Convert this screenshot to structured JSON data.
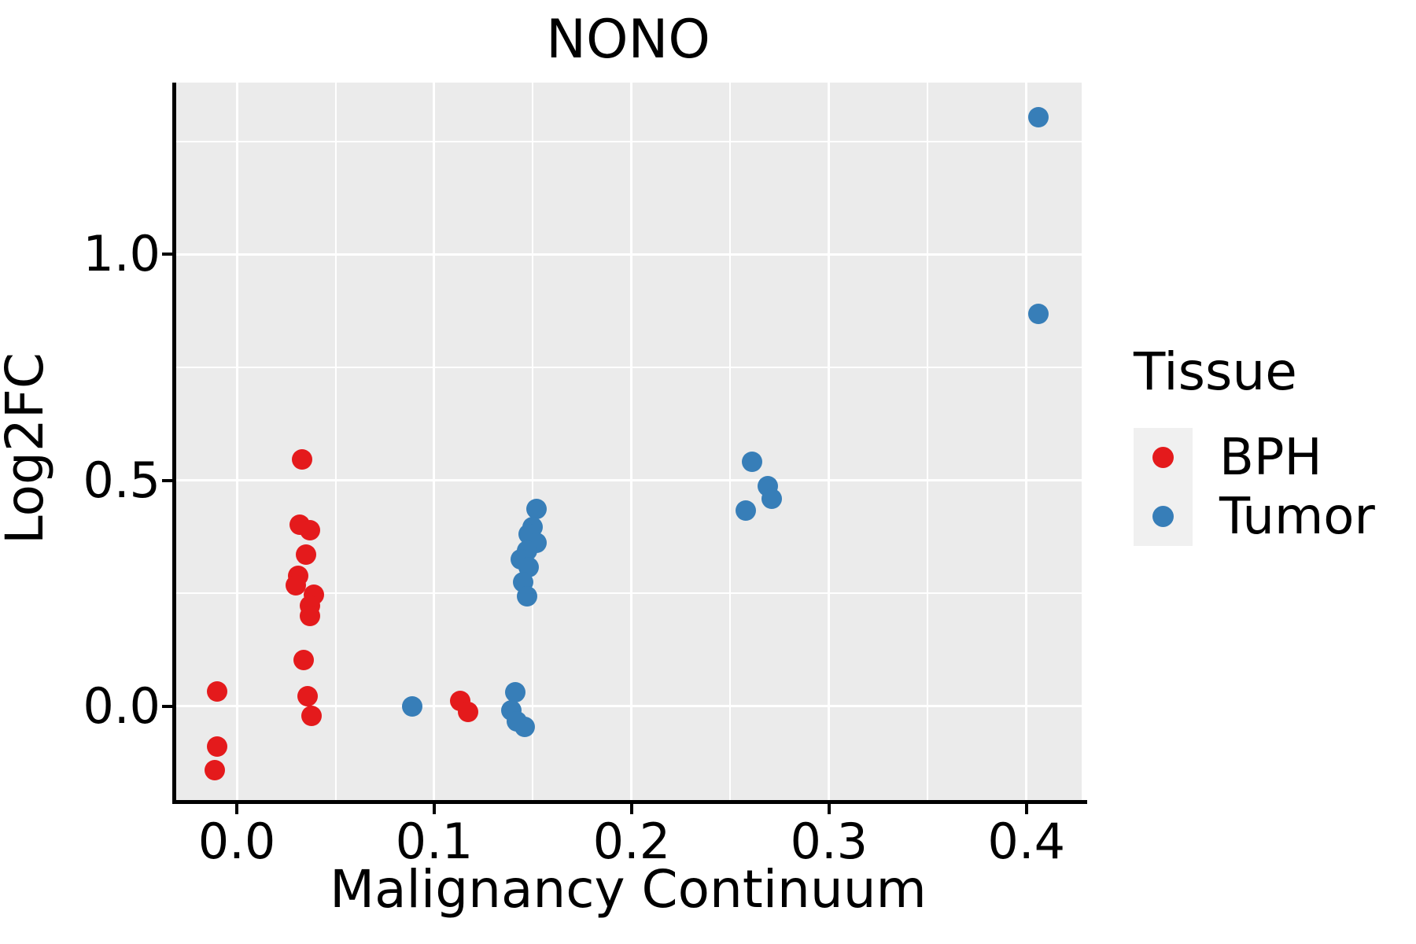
{
  "chart_data": {
    "type": "scatter",
    "title": "NONO",
    "xlabel": "Malignancy Continuum",
    "ylabel": "Log2FC",
    "xlim": [
      -0.0315,
      0.428
    ],
    "ylim": [
      -0.211,
      1.38
    ],
    "grid": "on",
    "panel_bg": "#ebebeb",
    "grid_color": "#ffffff",
    "x_major_ticks": [
      0.0,
      0.1,
      0.2,
      0.3,
      0.4
    ],
    "x_tick_labels": [
      "0.0",
      "0.1",
      "0.2",
      "0.3",
      "0.4"
    ],
    "x_minor_ticks": [
      0.05,
      0.15,
      0.25,
      0.35
    ],
    "y_major_ticks": [
      0.0,
      0.5,
      1.0
    ],
    "y_tick_labels": [
      "0.0",
      "0.5",
      "1.0"
    ],
    "y_minor_ticks": [
      0.25,
      0.75,
      1.25
    ],
    "legend": {
      "title": "Tissue",
      "position": "right",
      "entries": [
        {
          "label": "BPH",
          "color": "#e41a1c"
        },
        {
          "label": "Tumor",
          "color": "#377eb8"
        }
      ]
    },
    "series": [
      {
        "name": "BPH",
        "color": "#e41a1c",
        "points": [
          [
            -0.01,
            0.033
          ],
          [
            -0.01,
            -0.089
          ],
          [
            -0.011,
            -0.141
          ],
          [
            0.033,
            0.547
          ],
          [
            0.032,
            0.402
          ],
          [
            0.037,
            0.39
          ],
          [
            0.035,
            0.336
          ],
          [
            0.031,
            0.289
          ],
          [
            0.03,
            0.267
          ],
          [
            0.039,
            0.247
          ],
          [
            0.037,
            0.223
          ],
          [
            0.037,
            0.2
          ],
          [
            0.034,
            0.103
          ],
          [
            0.036,
            0.023
          ],
          [
            0.038,
            -0.022
          ],
          [
            0.113,
            0.012
          ],
          [
            0.117,
            -0.012
          ]
        ]
      },
      {
        "name": "Tumor",
        "color": "#377eb8",
        "points": [
          [
            0.089,
            0.0
          ],
          [
            0.141,
            0.031
          ],
          [
            0.139,
            -0.009
          ],
          [
            0.142,
            -0.033
          ],
          [
            0.146,
            -0.045
          ],
          [
            0.152,
            0.437
          ],
          [
            0.15,
            0.397
          ],
          [
            0.148,
            0.38
          ],
          [
            0.152,
            0.362
          ],
          [
            0.147,
            0.345
          ],
          [
            0.144,
            0.325
          ],
          [
            0.148,
            0.307
          ],
          [
            0.145,
            0.275
          ],
          [
            0.147,
            0.243
          ],
          [
            0.261,
            0.541
          ],
          [
            0.269,
            0.487
          ],
          [
            0.271,
            0.459
          ],
          [
            0.258,
            0.433
          ],
          [
            0.406,
            1.303
          ],
          [
            0.406,
            0.868
          ]
        ]
      }
    ]
  }
}
